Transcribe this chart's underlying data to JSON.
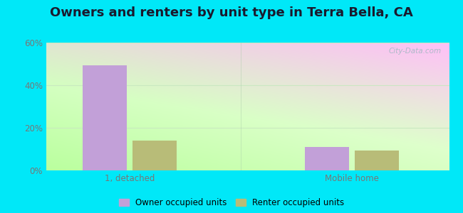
{
  "title": "Owners and renters by unit type in Terra Bella, CA",
  "categories": [
    "1, detached",
    "Mobile home"
  ],
  "owner_values": [
    49.5,
    11.0
  ],
  "renter_values": [
    14.0,
    9.5
  ],
  "owner_color": "#c2a0d8",
  "renter_color": "#b8bc78",
  "ylim": [
    0,
    60
  ],
  "yticks": [
    0,
    20,
    40,
    60
  ],
  "ytick_labels": [
    "0%",
    "20%",
    "40%",
    "60%"
  ],
  "bar_width": 0.32,
  "group_positions": [
    1.0,
    2.6
  ],
  "outer_bg": "#00e8f8",
  "legend_labels": [
    "Owner occupied units",
    "Renter occupied units"
  ],
  "title_fontsize": 13,
  "watermark": "City-Data.com",
  "tick_color": "#777777",
  "grid_color": "#d8eed8"
}
